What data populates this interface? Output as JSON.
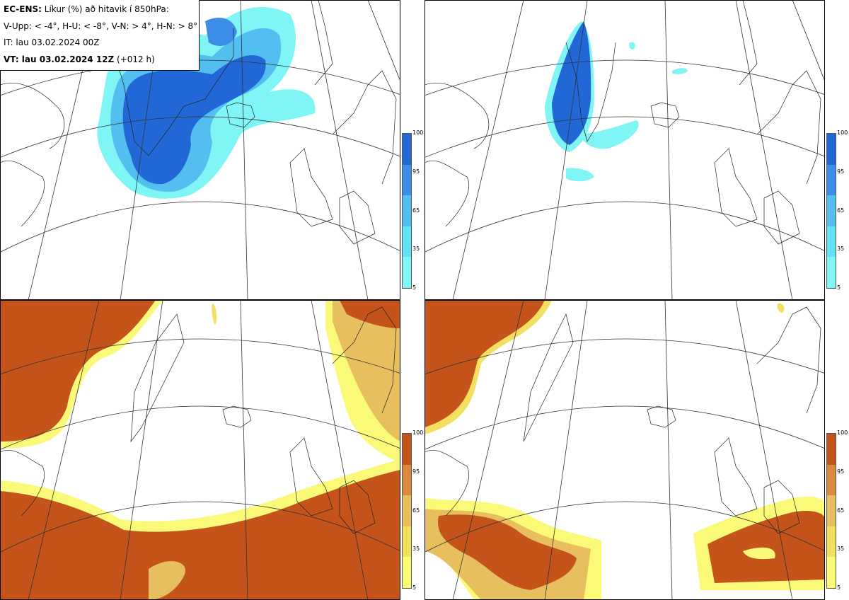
{
  "legend": {
    "line1_bold": "EC-ENS:",
    "line1_rest": " Líkur (%) að hitavik í 850hPa:",
    "line2": "V-Upp: < -4°, H-U: < -8°, V-N: > 4°, H-N: > 8°",
    "line3": "IT: lau 03.02.2024 00Z",
    "line4_bold": "VT: lau 03.02.2024 12Z",
    "line4_rest": " (+012 h)"
  },
  "panels": [
    {
      "id": "top-left",
      "name": "V-Upp",
      "scheme": "blue"
    },
    {
      "id": "top-right",
      "name": "H-U",
      "scheme": "blue"
    },
    {
      "id": "bottom-left",
      "name": "V-N",
      "scheme": "orange"
    },
    {
      "id": "bottom-right",
      "name": "H-N",
      "scheme": "orange"
    }
  ],
  "colorbar": {
    "ticks": [
      "100",
      "95",
      "65",
      "35",
      "5"
    ],
    "blue": [
      "#2168d6",
      "#3d8ee8",
      "#52bff0",
      "#62e3f5",
      "#80f6f6"
    ],
    "orange": [
      "#c4541a",
      "#d98a3e",
      "#e8bf5e",
      "#f3e060",
      "#fbfa78"
    ]
  }
}
